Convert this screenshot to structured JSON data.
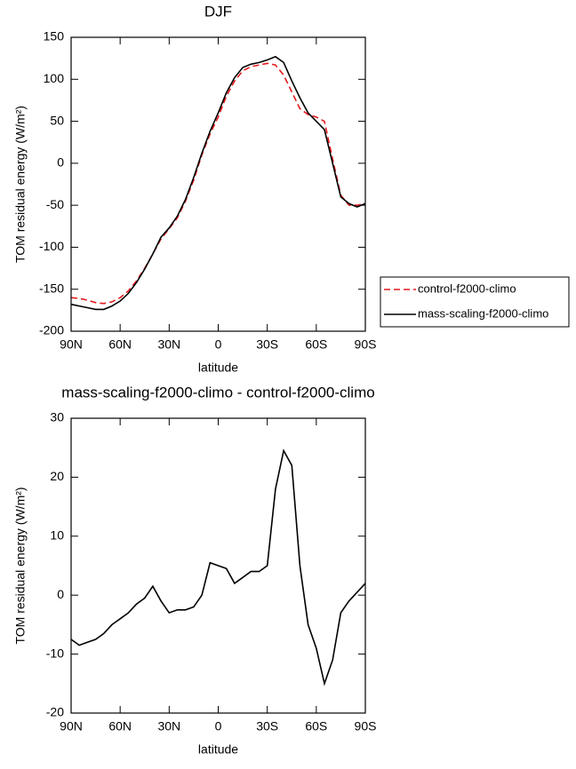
{
  "chart_data": [
    {
      "type": "line",
      "title": "DJF",
      "xlabel": "latitude",
      "ylabel": "TOM residual energy (W/m²)",
      "x": [
        90,
        85,
        80,
        75,
        70,
        65,
        60,
        55,
        50,
        45,
        40,
        35,
        30,
        25,
        20,
        15,
        10,
        5,
        0,
        -5,
        -10,
        -15,
        -20,
        -25,
        -30,
        -35,
        -40,
        -45,
        -50,
        -55,
        -60,
        -65,
        -70,
        -75,
        -80,
        -85,
        -90
      ],
      "series": [
        {
          "name": "control-f2000-climo",
          "color": "#e41a1c",
          "dash": true,
          "values": [
            -160,
            -161,
            -163,
            -166,
            -167,
            -165,
            -160,
            -152,
            -140,
            -125,
            -108,
            -90,
            -78,
            -65,
            -45,
            -20,
            10,
            35,
            55,
            80,
            98,
            110,
            115,
            117,
            119,
            117,
            105,
            85,
            65,
            58,
            55,
            50,
            5,
            -38,
            -50,
            -50,
            -48
          ]
        },
        {
          "name": "mass-scaling-f2000-climo",
          "color": "#000000",
          "dash": false,
          "values": [
            -168,
            -170,
            -172,
            -174,
            -174,
            -170,
            -164,
            -155,
            -142,
            -126,
            -108,
            -88,
            -77,
            -63,
            -43,
            -17,
            12,
            38,
            60,
            84,
            102,
            114,
            118,
            120,
            123,
            127,
            120,
            98,
            78,
            60,
            50,
            40,
            0,
            -40,
            -48,
            -52,
            -48
          ]
        }
      ],
      "xlim": [
        90,
        -90
      ],
      "xticks": [
        {
          "value": 90,
          "label": "90N"
        },
        {
          "value": 60,
          "label": "60N"
        },
        {
          "value": 30,
          "label": "30N"
        },
        0,
        {
          "value": -30,
          "label": "30S"
        },
        {
          "value": -60,
          "label": "60S"
        },
        {
          "value": -90,
          "label": "90S"
        }
      ],
      "ylim": [
        -200,
        150
      ],
      "yticks": [
        -200,
        -150,
        -100,
        -50,
        0,
        50,
        100,
        150
      ],
      "legend": "right"
    },
    {
      "type": "line",
      "title": "mass-scaling-f2000-climo - control-f2000-climo",
      "xlabel": "latitude",
      "ylabel": "TOM residual energy (W/m²)",
      "x": [
        90,
        85,
        80,
        75,
        70,
        65,
        60,
        55,
        50,
        45,
        40,
        35,
        30,
        25,
        20,
        15,
        10,
        5,
        0,
        -5,
        -10,
        -15,
        -20,
        -25,
        -30,
        -35,
        -40,
        -45,
        -50,
        -55,
        -60,
        -65,
        -70,
        -75,
        -80,
        -85,
        -90
      ],
      "series": [
        {
          "color": "#000000",
          "dash": false,
          "values": [
            -7.5,
            -8.5,
            -8,
            -7.5,
            -6.5,
            -5,
            -4,
            -3,
            -1.5,
            -0.5,
            1.5,
            -1,
            -3,
            -2.5,
            -2.5,
            -2,
            0,
            5.5,
            5,
            4.5,
            2,
            3,
            4,
            4,
            5,
            18,
            24.5,
            22,
            5,
            -5,
            -9,
            -15,
            -11,
            -3,
            -1,
            0.5,
            2
          ]
        }
      ],
      "xlim": [
        90,
        -90
      ],
      "xticks": [
        {
          "value": 90,
          "label": "90N"
        },
        {
          "value": 60,
          "label": "60N"
        },
        {
          "value": 30,
          "label": "30N"
        },
        0,
        {
          "value": -30,
          "label": "30S"
        },
        {
          "value": -60,
          "label": "60S"
        },
        {
          "value": -90,
          "label": "90S"
        }
      ],
      "ylim": [
        -20,
        30
      ],
      "yticks": [
        -20,
        -10,
        0,
        10,
        20,
        30
      ]
    }
  ]
}
